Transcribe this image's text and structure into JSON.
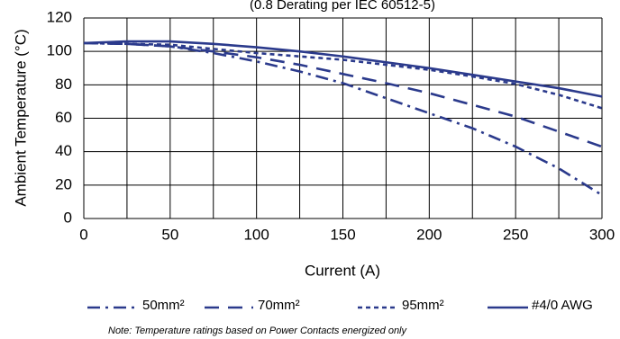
{
  "chart_data": {
    "type": "line",
    "subtitle": "(0.8 Derating per IEC 60512-5)",
    "x_label": "Current (A)",
    "y_label": "Ambient Temperature (°C)",
    "x": [
      0,
      25,
      50,
      75,
      100,
      125,
      150,
      175,
      200,
      225,
      250,
      275,
      300
    ],
    "series": [
      {
        "name": "50mm²",
        "color": "#2b3a8c",
        "dash": "14,6,3,6",
        "values": [
          105,
          104.5,
          103,
          99,
          94,
          88,
          81,
          72,
          63,
          54,
          43,
          30,
          14
        ]
      },
      {
        "name": "70mm²",
        "color": "#2b3a8c",
        "dash": "16,10",
        "values": [
          105,
          104.5,
          103,
          100,
          96.5,
          92,
          86.5,
          81,
          75,
          68,
          61,
          52,
          43
        ]
      },
      {
        "name": "95mm²",
        "color": "#2b3a8c",
        "dash": "5,4",
        "values": [
          105,
          104.5,
          104,
          101.5,
          99,
          97,
          95,
          92,
          89,
          85,
          80.5,
          74,
          66
        ]
      },
      {
        "name": "#4/0 AWG",
        "color": "#2b3a8c",
        "dash": "none",
        "values": [
          105,
          106,
          106,
          104.5,
          102.5,
          100,
          97,
          93.5,
          90,
          86,
          82,
          78,
          73
        ]
      }
    ],
    "xlim": [
      0,
      300
    ],
    "xticks": [
      0,
      50,
      100,
      150,
      200,
      250,
      300
    ],
    "x_minor_grid": [
      25,
      75,
      125,
      175,
      225,
      275
    ],
    "ylim": [
      0,
      120
    ],
    "yticks": [
      0,
      20,
      40,
      60,
      80,
      100,
      120
    ],
    "grid": true,
    "legend": "bottom",
    "note": "Note: Temperature ratings based on Power Contacts energized only"
  }
}
